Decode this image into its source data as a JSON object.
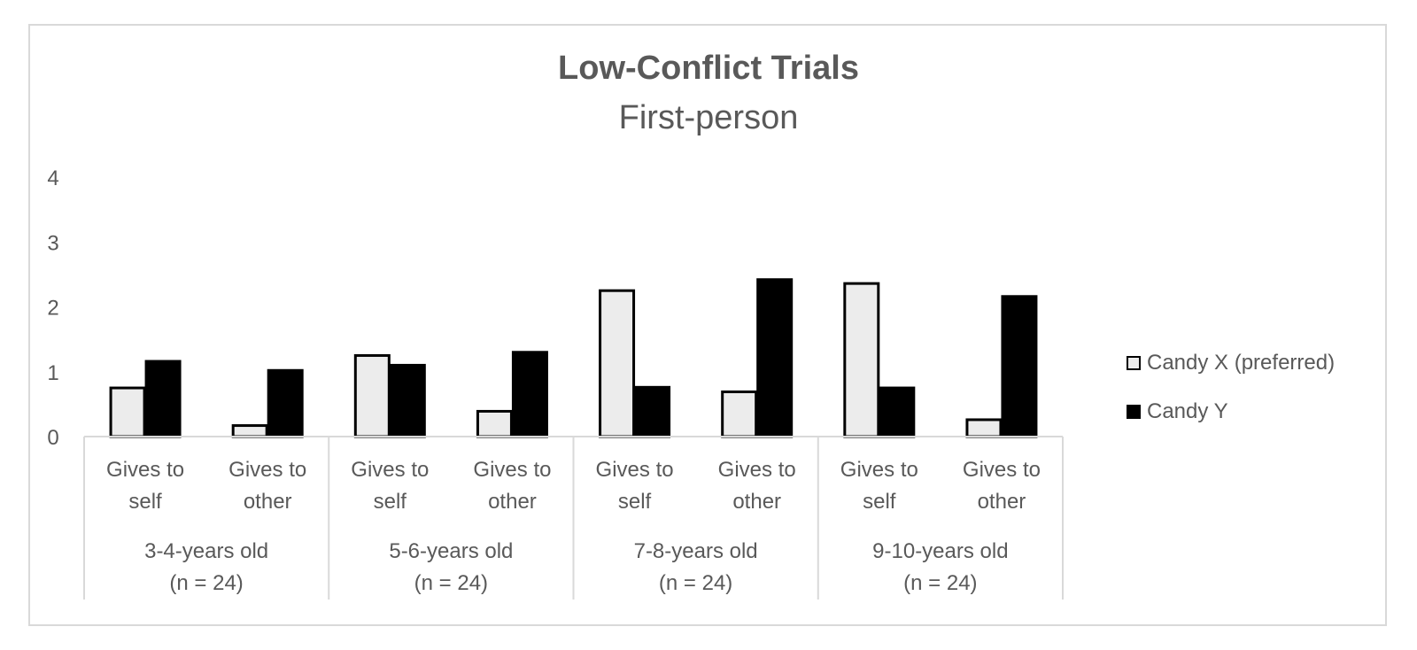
{
  "chart_data": {
    "type": "bar",
    "title": "Low-Conflict Trials",
    "subtitle": "First-person",
    "xlabel": "",
    "ylabel": "",
    "ylim": [
      0,
      4
    ],
    "yticks": [
      "0",
      "1",
      "2",
      "3",
      "4"
    ],
    "grid": false,
    "legend_position": "right",
    "categories": [
      {
        "label1": "Gives to",
        "label2": "self",
        "group": 0
      },
      {
        "label1": "Gives to",
        "label2": "other",
        "group": 0
      },
      {
        "label1": "Gives to",
        "label2": "self",
        "group": 1
      },
      {
        "label1": "Gives to",
        "label2": "other",
        "group": 1
      },
      {
        "label1": "Gives to",
        "label2": "self",
        "group": 2
      },
      {
        "label1": "Gives to",
        "label2": "other",
        "group": 2
      },
      {
        "label1": "Gives to",
        "label2": "self",
        "group": 3
      },
      {
        "label1": "Gives to",
        "label2": "other",
        "group": 3
      }
    ],
    "groups": [
      {
        "label1": "3-4-years old",
        "label2": "(n = 24)"
      },
      {
        "label1": "5-6-years old",
        "label2": "(n = 24)"
      },
      {
        "label1": "7-8-years old",
        "label2": "(n = 24)"
      },
      {
        "label1": "9-10-years old",
        "label2": "(n = 24)"
      }
    ],
    "series": [
      {
        "name": "Candy X (preferred)",
        "color": "#ececec",
        "values": [
          0.75,
          0.17,
          1.25,
          0.39,
          2.25,
          0.69,
          2.36,
          0.26
        ]
      },
      {
        "name": "Candy Y",
        "color": "#000000",
        "values": [
          1.16,
          1.02,
          1.1,
          1.3,
          0.76,
          2.42,
          0.75,
          2.16
        ]
      }
    ]
  }
}
